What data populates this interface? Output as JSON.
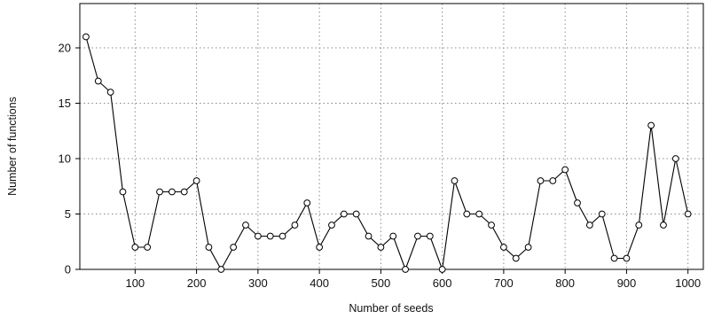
{
  "chart_data": {
    "type": "line",
    "title": "",
    "xlabel": "Number of seeds",
    "ylabel": "Number of functions",
    "xlim": [
      10,
      1025
    ],
    "ylim": [
      0,
      24
    ],
    "grid": true,
    "x_ticks": [
      100,
      200,
      300,
      400,
      500,
      600,
      700,
      800,
      900,
      1000
    ],
    "y_ticks": [
      0,
      5,
      10,
      15,
      20
    ],
    "marker": "open-circle",
    "series": [
      {
        "x": [
          20,
          40,
          60,
          80,
          100,
          120,
          140,
          160,
          180,
          200,
          220,
          240,
          260,
          280,
          300,
          320,
          340,
          360,
          380,
          400,
          420,
          440,
          460,
          480,
          500,
          520,
          540,
          560,
          580,
          600,
          620,
          640,
          660,
          680,
          700,
          720,
          740,
          760,
          780,
          800,
          820,
          840,
          860,
          880,
          900,
          920,
          940,
          960,
          980,
          1000
        ],
        "values": [
          21,
          17,
          16,
          7,
          2,
          2,
          7,
          7,
          7,
          8,
          2,
          0,
          2,
          4,
          3,
          3,
          3,
          4,
          6,
          2,
          4,
          5,
          5,
          3,
          2,
          3,
          0,
          3,
          3,
          0,
          8,
          5,
          5,
          4,
          2,
          1,
          2,
          8,
          8,
          9,
          6,
          4,
          5,
          1,
          1,
          4,
          13,
          4,
          10,
          5
        ]
      }
    ]
  }
}
